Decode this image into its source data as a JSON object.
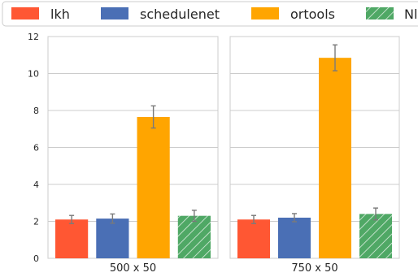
{
  "chart_data": {
    "type": "bar",
    "legend": {
      "placement": "top",
      "entries": [
        {
          "label": "lkh",
          "color": "#ff5733",
          "hatch": false
        },
        {
          "label": "schedulenet",
          "color": "#4a6fb5",
          "hatch": false
        },
        {
          "label": "ortools",
          "color": "#ffa500",
          "hatch": false
        },
        {
          "label": "Nl",
          "color": "#4fa865",
          "hatch": true
        }
      ]
    },
    "ylim": [
      0,
      12
    ],
    "yticks": [
      "0",
      "2",
      "4",
      "6",
      "8",
      "10",
      "12"
    ],
    "grid": true,
    "panels": [
      {
        "category": "500 x 50",
        "values": [
          2.1,
          2.15,
          7.65,
          2.3
        ],
        "errors": [
          0.22,
          0.25,
          0.6,
          0.3
        ]
      },
      {
        "category": "750 x 50",
        "values": [
          2.1,
          2.2,
          10.85,
          2.4
        ],
        "errors": [
          0.22,
          0.22,
          0.7,
          0.32
        ]
      }
    ]
  }
}
